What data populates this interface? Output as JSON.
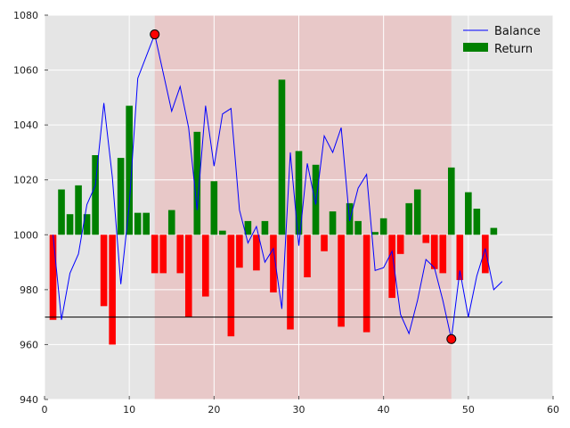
{
  "chart_data": {
    "type": "bar",
    "title": "",
    "xlabel": "",
    "ylabel": "",
    "xlim": [
      0,
      60
    ],
    "ylim": [
      940,
      1080
    ],
    "xticks": [
      0,
      10,
      20,
      30,
      40,
      50,
      60
    ],
    "yticks": [
      940,
      960,
      980,
      1000,
      1020,
      1040,
      1060,
      1080
    ],
    "grid": true,
    "legend_position": "top-right",
    "background": "#e5e5e5",
    "highlight_span": {
      "x": [
        13,
        48
      ],
      "color": "#e8c8c8"
    },
    "baseline": 1000,
    "hline": {
      "y": 970,
      "color": "#000000"
    },
    "colors": {
      "positive": "#008000",
      "negative": "#ff0000",
      "balance": "#0000ff",
      "marker": "#ff0000"
    },
    "legend": [
      {
        "label": "Balance",
        "kind": "line"
      },
      {
        "label": "Return",
        "kind": "bar"
      }
    ],
    "returns": {
      "name": "Return",
      "x": [
        1,
        2,
        3,
        4,
        5,
        6,
        7,
        8,
        9,
        10,
        11,
        12,
        13,
        14,
        15,
        16,
        17,
        18,
        19,
        20,
        21,
        22,
        23,
        24,
        25,
        26,
        27,
        28,
        29,
        30,
        31,
        32,
        33,
        34,
        35,
        36,
        37,
        38,
        39,
        40,
        41,
        42,
        43,
        44,
        45,
        46,
        47,
        48,
        49,
        50,
        51,
        52,
        53
      ],
      "values": [
        -31,
        16.5,
        7.5,
        18,
        7.5,
        29,
        -26,
        -40,
        28,
        47,
        8,
        8,
        -14,
        -14,
        9,
        -14,
        -30,
        37.5,
        -22.5,
        19.5,
        1.5,
        -37,
        -12,
        5,
        -13,
        5,
        -21,
        56.5,
        -34.5,
        30.5,
        -15.5,
        25.5,
        -6,
        8.5,
        -33.5,
        11.5,
        5,
        -35.5,
        1,
        6,
        -23,
        -7,
        11.5,
        16.5,
        -3,
        -12.5,
        -14,
        24.5,
        -16.5,
        15.5,
        9.5,
        -14,
        2.5
      ]
    },
    "balance": {
      "name": "Balance",
      "x": [
        1,
        2,
        3,
        4,
        5,
        6,
        7,
        8,
        9,
        10,
        11,
        12,
        13,
        14,
        15,
        16,
        17,
        18,
        19,
        20,
        21,
        22,
        23,
        24,
        25,
        26,
        27,
        28,
        29,
        30,
        31,
        32,
        33,
        34,
        35,
        36,
        37,
        38,
        39,
        40,
        41,
        42,
        43,
        44,
        45,
        46,
        47,
        48,
        49,
        50,
        51,
        52,
        53,
        54
      ],
      "values": [
        1000,
        969,
        986,
        993,
        1011,
        1018,
        1048,
        1021,
        982,
        1011,
        1057,
        1065,
        1073,
        1059,
        1045,
        1054,
        1039,
        1009,
        1047,
        1025,
        1044,
        1046,
        1009,
        997,
        1003,
        990,
        995,
        973,
        1030,
        996,
        1026,
        1011,
        1036,
        1030,
        1039,
        1005,
        1017,
        1022,
        987,
        988,
        994,
        971,
        964,
        976,
        991,
        988,
        976,
        962,
        987,
        970,
        985,
        995,
        980,
        983
      ]
    },
    "markers": [
      {
        "x": 13,
        "y": 1073
      },
      {
        "x": 48,
        "y": 962
      }
    ]
  }
}
